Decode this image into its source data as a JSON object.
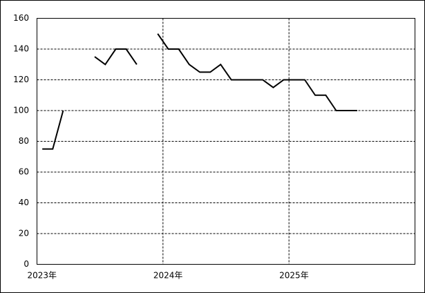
{
  "chart_data": {
    "type": "line",
    "x": [
      2023.042,
      2023.125,
      2023.208,
      2023.292,
      2023.375,
      2023.458,
      2023.542,
      2023.625,
      2023.708,
      2023.792,
      2023.875,
      2023.958,
      2024.042,
      2024.125,
      2024.208,
      2024.292,
      2024.375,
      2024.458,
      2024.542,
      2024.625,
      2024.708,
      2024.792,
      2024.875,
      2024.958,
      2025.042,
      2025.125,
      2025.208,
      2025.292,
      2025.375,
      2025.458,
      2025.542
    ],
    "values": [
      75,
      75,
      100,
      null,
      null,
      135,
      130,
      140,
      140,
      130,
      null,
      150,
      140,
      140,
      130,
      125,
      125,
      130,
      120,
      120,
      120,
      120,
      115,
      120,
      120,
      120,
      110,
      110,
      100,
      100,
      100
    ],
    "color": "#000000",
    "xlim": [
      2023,
      2026
    ],
    "xticks": [
      {
        "value": 2023,
        "label": "2023年"
      },
      {
        "value": 2024,
        "label": "2024年"
      },
      {
        "value": 2025,
        "label": "2025年"
      }
    ],
    "ylim": [
      0,
      160
    ],
    "yticks": [
      0,
      20,
      40,
      60,
      80,
      100,
      120,
      140,
      160
    ],
    "grid": true
  }
}
